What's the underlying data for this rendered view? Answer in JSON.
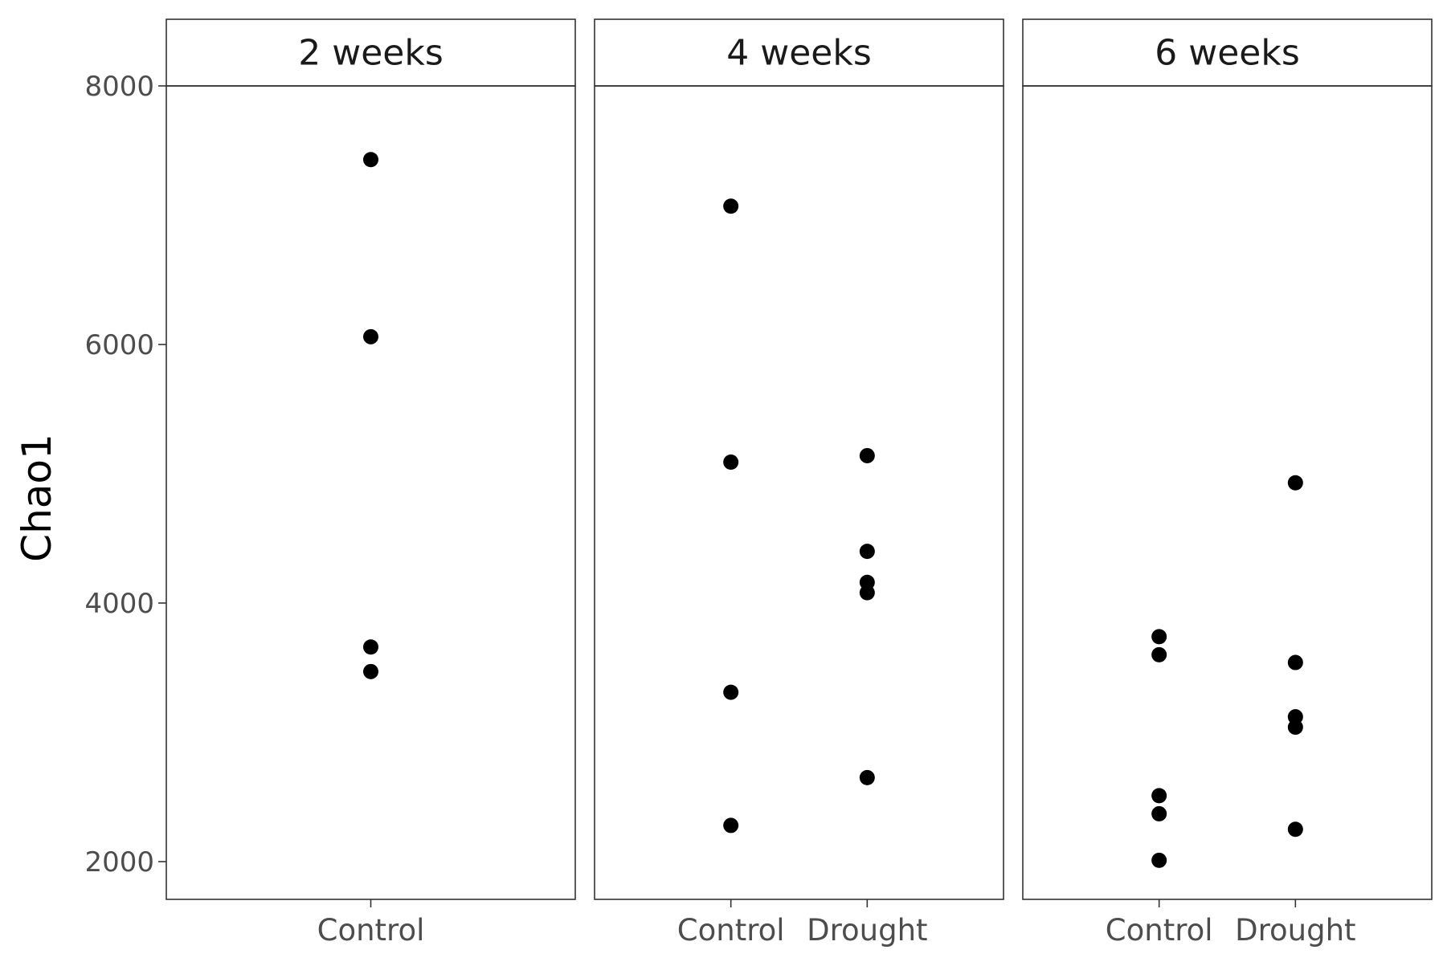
{
  "chart_data": {
    "type": "scatter",
    "ylabel": "Chao1",
    "xlabel": "",
    "ylim": [
      1700,
      8000
    ],
    "yticks": [
      2000,
      4000,
      6000,
      8000
    ],
    "ytick_labels": [
      "2000",
      "4000",
      "6000",
      "8000"
    ],
    "grid": false,
    "point_color": "#000000",
    "panels": [
      {
        "label": "2 weeks",
        "categories": [
          "Control"
        ],
        "points": [
          {
            "x": "Control",
            "y": 7430
          },
          {
            "x": "Control",
            "y": 6060
          },
          {
            "x": "Control",
            "y": 3660
          },
          {
            "x": "Control",
            "y": 3470
          }
        ]
      },
      {
        "label": "4 weeks",
        "categories": [
          "Control",
          "Drought"
        ],
        "points": [
          {
            "x": "Control",
            "y": 7070
          },
          {
            "x": "Control",
            "y": 5090
          },
          {
            "x": "Control",
            "y": 3310
          },
          {
            "x": "Control",
            "y": 2280
          },
          {
            "x": "Drought",
            "y": 5140
          },
          {
            "x": "Drought",
            "y": 4400
          },
          {
            "x": "Drought",
            "y": 4160
          },
          {
            "x": "Drought",
            "y": 4080
          },
          {
            "x": "Drought",
            "y": 2650
          }
        ]
      },
      {
        "label": "6 weeks",
        "categories": [
          "Control",
          "Drought"
        ],
        "points": [
          {
            "x": "Control",
            "y": 3740
          },
          {
            "x": "Control",
            "y": 3600
          },
          {
            "x": "Control",
            "y": 2510
          },
          {
            "x": "Control",
            "y": 2370
          },
          {
            "x": "Control",
            "y": 2010
          },
          {
            "x": "Drought",
            "y": 4930
          },
          {
            "x": "Drought",
            "y": 3540
          },
          {
            "x": "Drought",
            "y": 3120
          },
          {
            "x": "Drought",
            "y": 3040
          },
          {
            "x": "Drought",
            "y": 2250
          }
        ]
      }
    ]
  }
}
